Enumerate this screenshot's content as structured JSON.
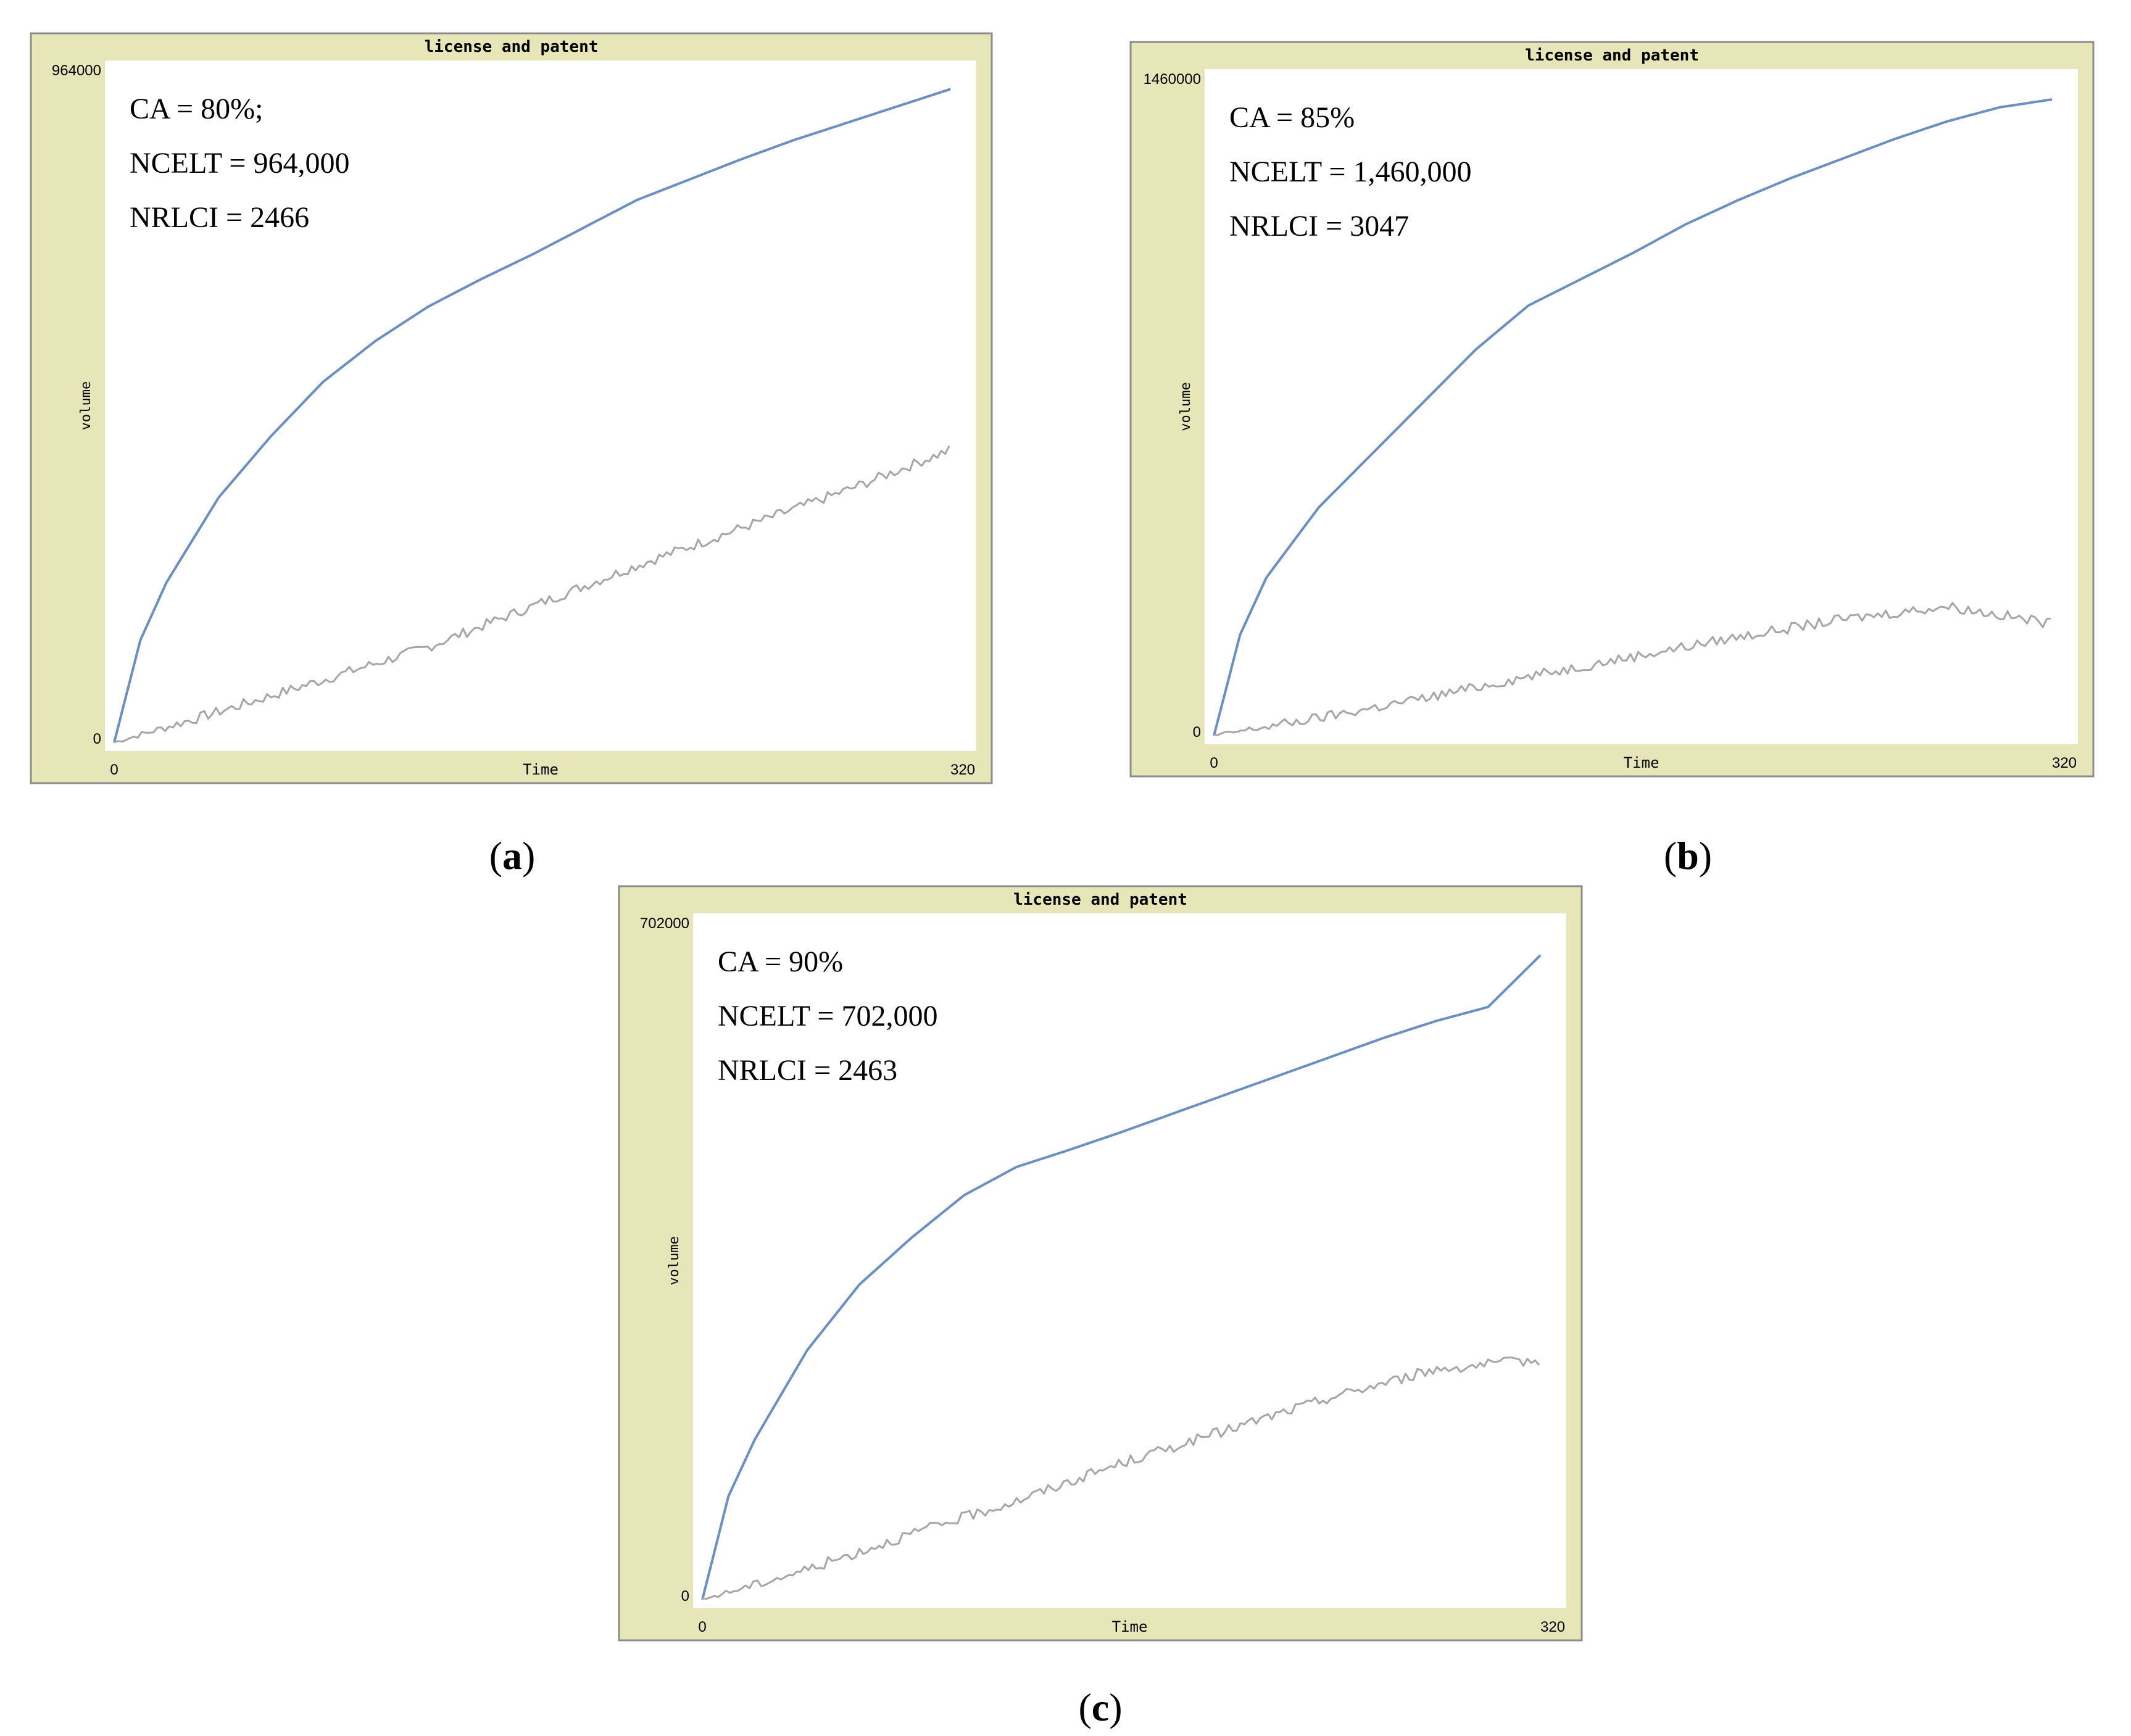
{
  "chart_data": [
    {
      "type": "line",
      "panel_label": "a",
      "title": "license and patent",
      "xlabel": "Time",
      "ylabel": "volume",
      "xlim": [
        0,
        320
      ],
      "ylim": [
        0,
        964000
      ],
      "x_ticks": [
        "0",
        "320"
      ],
      "y_ticks": [
        "0",
        "964000"
      ],
      "annotations": [
        "CA = 80%;",
        "NCELT = 964,000",
        "NRLCI = 2466"
      ],
      "series": [
        {
          "color": "#6a8fc2",
          "x": [
            0,
            10,
            20,
            40,
            60,
            80,
            100,
            120,
            140,
            160,
            180,
            200,
            220,
            240,
            260,
            280,
            300,
            320
          ],
          "y": [
            0,
            150000,
            235000,
            360000,
            450000,
            530000,
            590000,
            640000,
            680000,
            717000,
            757000,
            797000,
            827000,
            857000,
            885000,
            910000,
            935000,
            960000
          ]
        },
        {
          "color": "#a6a6a6",
          "noisy": true,
          "x": [
            0,
            40,
            80,
            120,
            160,
            200,
            240,
            280,
            320
          ],
          "y": [
            0,
            45000,
            92000,
            140000,
            200000,
            260000,
            315000,
            370000,
            430000
          ]
        }
      ]
    },
    {
      "type": "line",
      "panel_label": "b",
      "title": "license and patent",
      "xlabel": "Time",
      "ylabel": "volume",
      "xlim": [
        0,
        320
      ],
      "ylim": [
        0,
        1460000
      ],
      "x_ticks": [
        "0",
        "320"
      ],
      "y_ticks": [
        "0",
        "1460000"
      ],
      "annotations": [
        "CA = 85%",
        "NCELT = 1,460,000",
        "NRLCI = 3047"
      ],
      "series": [
        {
          "color": "#6a8fc2",
          "x": [
            0,
            10,
            20,
            40,
            60,
            80,
            100,
            120,
            140,
            160,
            180,
            200,
            220,
            240,
            260,
            280,
            300,
            320
          ],
          "y": [
            0,
            230000,
            360000,
            520000,
            640000,
            760000,
            880000,
            980000,
            1040000,
            1100000,
            1165000,
            1220000,
            1270000,
            1315000,
            1360000,
            1400000,
            1432000,
            1450000
          ]
        },
        {
          "color": "#a6a6a6",
          "noisy": true,
          "x": [
            0,
            40,
            80,
            120,
            160,
            200,
            240,
            280,
            320
          ],
          "y": [
            0,
            40000,
            85000,
            135000,
            180000,
            225000,
            265000,
            295000,
            255000
          ]
        }
      ]
    },
    {
      "type": "line",
      "panel_label": "c",
      "title": "license and patent",
      "xlabel": "Time",
      "ylabel": "volume",
      "xlim": [
        0,
        320
      ],
      "ylim": [
        0,
        702000
      ],
      "x_ticks": [
        "0",
        "320"
      ],
      "y_ticks": [
        "0",
        "702000"
      ],
      "annotations": [
        "CA = 90%",
        "NCELT = 702,000",
        "NRLCI = 2463"
      ],
      "series": [
        {
          "color": "#6a8fc2",
          "x": [
            0,
            10,
            20,
            40,
            60,
            80,
            100,
            120,
            140,
            160,
            180,
            200,
            220,
            240,
            260,
            280,
            300,
            320
          ],
          "y": [
            0,
            110000,
            170000,
            265000,
            335000,
            385000,
            430000,
            460000,
            478000,
            497000,
            517000,
            537000,
            557000,
            577000,
            597000,
            615000,
            630000,
            685000
          ]
        },
        {
          "color": "#a6a6a6",
          "noisy": true,
          "x": [
            0,
            40,
            80,
            120,
            160,
            200,
            240,
            280,
            320
          ],
          "y": [
            0,
            32000,
            70000,
            105000,
            145000,
            180000,
            215000,
            245000,
            255000
          ]
        }
      ]
    }
  ]
}
